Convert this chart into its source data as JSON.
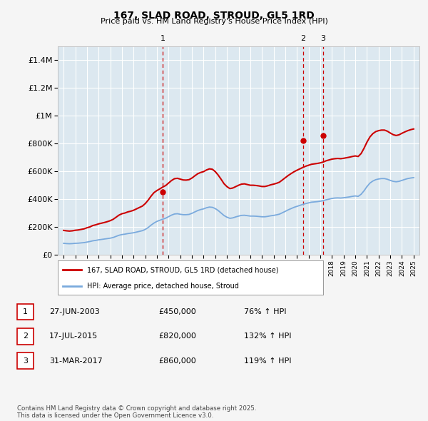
{
  "title": "167, SLAD ROAD, STROUD, GL5 1RD",
  "subtitle": "Price paid vs. HM Land Registry's House Price Index (HPI)",
  "ylim": [
    0,
    1500000
  ],
  "yticks": [
    0,
    200000,
    400000,
    600000,
    800000,
    1000000,
    1200000,
    1400000
  ],
  "ytick_labels": [
    "£0",
    "£200K",
    "£400K",
    "£600K",
    "£800K",
    "£1M",
    "£1.2M",
    "£1.4M"
  ],
  "xlim_start": 1994.5,
  "xlim_end": 2025.5,
  "legend_line1": "167, SLAD ROAD, STROUD, GL5 1RD (detached house)",
  "legend_line2": "HPI: Average price, detached house, Stroud",
  "sale_color": "#cc0000",
  "hpi_color": "#7aaadd",
  "annotation_color": "#cc0000",
  "table_rows": [
    {
      "num": "1",
      "date": "27-JUN-2003",
      "price": "£450,000",
      "hpi": "76% ↑ HPI"
    },
    {
      "num": "2",
      "date": "17-JUL-2015",
      "price": "£820,000",
      "hpi": "132% ↑ HPI"
    },
    {
      "num": "3",
      "date": "31-MAR-2017",
      "price": "£860,000",
      "hpi": "119% ↑ HPI"
    }
  ],
  "footnote": "Contains HM Land Registry data © Crown copyright and database right 2025.\nThis data is licensed under the Open Government Licence v3.0.",
  "sale_points": [
    {
      "year": 2003.48,
      "price": 450000,
      "label": "1"
    },
    {
      "year": 2015.54,
      "price": 820000,
      "label": "2"
    },
    {
      "year": 2017.25,
      "price": 860000,
      "label": "3"
    }
  ],
  "vlines": [
    2003.48,
    2015.54,
    2017.25
  ],
  "hpi_data": {
    "years": [
      1995.0,
      1995.25,
      1995.5,
      1995.75,
      1996.0,
      1996.25,
      1996.5,
      1996.75,
      1997.0,
      1997.25,
      1997.5,
      1997.75,
      1998.0,
      1998.25,
      1998.5,
      1998.75,
      1999.0,
      1999.25,
      1999.5,
      1999.75,
      2000.0,
      2000.25,
      2000.5,
      2000.75,
      2001.0,
      2001.25,
      2001.5,
      2001.75,
      2002.0,
      2002.25,
      2002.5,
      2002.75,
      2003.0,
      2003.25,
      2003.5,
      2003.75,
      2004.0,
      2004.25,
      2004.5,
      2004.75,
      2005.0,
      2005.25,
      2005.5,
      2005.75,
      2006.0,
      2006.25,
      2006.5,
      2006.75,
      2007.0,
      2007.25,
      2007.5,
      2007.75,
      2008.0,
      2008.25,
      2008.5,
      2008.75,
      2009.0,
      2009.25,
      2009.5,
      2009.75,
      2010.0,
      2010.25,
      2010.5,
      2010.75,
      2011.0,
      2011.25,
      2011.5,
      2011.75,
      2012.0,
      2012.25,
      2012.5,
      2012.75,
      2013.0,
      2013.25,
      2013.5,
      2013.75,
      2014.0,
      2014.25,
      2014.5,
      2014.75,
      2015.0,
      2015.25,
      2015.5,
      2015.75,
      2016.0,
      2016.25,
      2016.5,
      2016.75,
      2017.0,
      2017.25,
      2017.5,
      2017.75,
      2018.0,
      2018.25,
      2018.5,
      2018.75,
      2019.0,
      2019.25,
      2019.5,
      2019.75,
      2020.0,
      2020.25,
      2020.5,
      2020.75,
      2021.0,
      2021.25,
      2021.5,
      2021.75,
      2022.0,
      2022.25,
      2022.5,
      2022.75,
      2023.0,
      2023.25,
      2023.5,
      2023.75,
      2024.0,
      2024.25,
      2024.5,
      2024.75,
      2025.0
    ],
    "values": [
      82000,
      80000,
      79000,
      80000,
      82000,
      83000,
      85000,
      87000,
      91000,
      95000,
      100000,
      103000,
      107000,
      110000,
      113000,
      116000,
      119000,
      124000,
      132000,
      140000,
      145000,
      148000,
      152000,
      155000,
      158000,
      163000,
      168000,
      173000,
      182000,
      196000,
      213000,
      228000,
      240000,
      248000,
      256000,
      263000,
      274000,
      285000,
      293000,
      295000,
      291000,
      288000,
      288000,
      290000,
      298000,
      308000,
      318000,
      325000,
      330000,
      338000,
      343000,
      341000,
      332000,
      318000,
      300000,
      282000,
      270000,
      262000,
      265000,
      272000,
      278000,
      283000,
      284000,
      281000,
      278000,
      278000,
      277000,
      275000,
      273000,
      273000,
      276000,
      280000,
      283000,
      287000,
      292000,
      302000,
      312000,
      323000,
      332000,
      341000,
      348000,
      355000,
      362000,
      368000,
      373000,
      378000,
      380000,
      382000,
      385000,
      389000,
      395000,
      400000,
      405000,
      408000,
      409000,
      408000,
      410000,
      413000,
      416000,
      420000,
      423000,
      420000,
      435000,
      460000,
      490000,
      515000,
      530000,
      540000,
      545000,
      548000,
      548000,
      543000,
      535000,
      528000,
      525000,
      528000,
      535000,
      542000,
      548000,
      552000,
      555000
    ]
  },
  "property_data": {
    "years": [
      1995.0,
      1995.25,
      1995.5,
      1995.75,
      1996.0,
      1996.25,
      1996.5,
      1996.75,
      1997.0,
      1997.25,
      1997.5,
      1997.75,
      1998.0,
      1998.25,
      1998.5,
      1998.75,
      1999.0,
      1999.25,
      1999.5,
      1999.75,
      2000.0,
      2000.25,
      2000.5,
      2000.75,
      2001.0,
      2001.25,
      2001.5,
      2001.75,
      2002.0,
      2002.25,
      2002.5,
      2002.75,
      2003.0,
      2003.25,
      2003.5,
      2003.75,
      2004.0,
      2004.25,
      2004.5,
      2004.75,
      2005.0,
      2005.25,
      2005.5,
      2005.75,
      2006.0,
      2006.25,
      2006.5,
      2006.75,
      2007.0,
      2007.25,
      2007.5,
      2007.75,
      2008.0,
      2008.25,
      2008.5,
      2008.75,
      2009.0,
      2009.25,
      2009.5,
      2009.75,
      2010.0,
      2010.25,
      2010.5,
      2010.75,
      2011.0,
      2011.25,
      2011.5,
      2011.75,
      2012.0,
      2012.25,
      2012.5,
      2012.75,
      2013.0,
      2013.25,
      2013.5,
      2013.75,
      2014.0,
      2014.25,
      2014.5,
      2014.75,
      2015.0,
      2015.25,
      2015.5,
      2015.75,
      2016.0,
      2016.25,
      2016.5,
      2016.75,
      2017.0,
      2017.25,
      2017.5,
      2017.75,
      2018.0,
      2018.25,
      2018.5,
      2018.75,
      2019.0,
      2019.25,
      2019.5,
      2019.75,
      2020.0,
      2020.25,
      2020.5,
      2020.75,
      2021.0,
      2021.25,
      2021.5,
      2021.75,
      2022.0,
      2022.25,
      2022.5,
      2022.75,
      2023.0,
      2023.25,
      2023.5,
      2023.75,
      2024.0,
      2024.25,
      2024.5,
      2024.75,
      2025.0
    ],
    "values": [
      175000,
      172000,
      170000,
      172000,
      176000,
      178000,
      182000,
      186000,
      194000,
      200000,
      210000,
      215000,
      222000,
      227000,
      232000,
      238000,
      245000,
      255000,
      270000,
      285000,
      295000,
      300000,
      308000,
      313000,
      320000,
      330000,
      340000,
      350000,
      368000,
      393000,
      422000,
      447000,
      462000,
      474000,
      487000,
      498000,
      516000,
      534000,
      547000,
      550000,
      544000,
      538000,
      537000,
      540000,
      552000,
      568000,
      583000,
      592000,
      598000,
      610000,
      618000,
      615000,
      598000,
      573000,
      543000,
      511000,
      490000,
      476000,
      480000,
      490000,
      500000,
      508000,
      510000,
      505000,
      500000,
      500000,
      498000,
      495000,
      491000,
      491000,
      496000,
      503000,
      508000,
      514000,
      522000,
      538000,
      554000,
      570000,
      584000,
      597000,
      608000,
      618000,
      628000,
      637000,
      644000,
      651000,
      654000,
      657000,
      661000,
      667000,
      676000,
      682000,
      688000,
      691000,
      693000,
      691000,
      694000,
      698000,
      702000,
      707000,
      711000,
      707000,
      728000,
      766000,
      810000,
      847000,
      871000,
      886000,
      893000,
      897000,
      897000,
      889000,
      876000,
      864000,
      858000,
      863000,
      874000,
      884000,
      893000,
      900000,
      905000
    ]
  },
  "xticks": [
    1995,
    1996,
    1997,
    1998,
    1999,
    2000,
    2001,
    2002,
    2003,
    2004,
    2005,
    2006,
    2007,
    2008,
    2009,
    2010,
    2011,
    2012,
    2013,
    2014,
    2015,
    2016,
    2017,
    2018,
    2019,
    2020,
    2021,
    2022,
    2023,
    2024,
    2025
  ],
  "bg_color": "#dce8f0",
  "plot_bg": "#f5f5f5"
}
